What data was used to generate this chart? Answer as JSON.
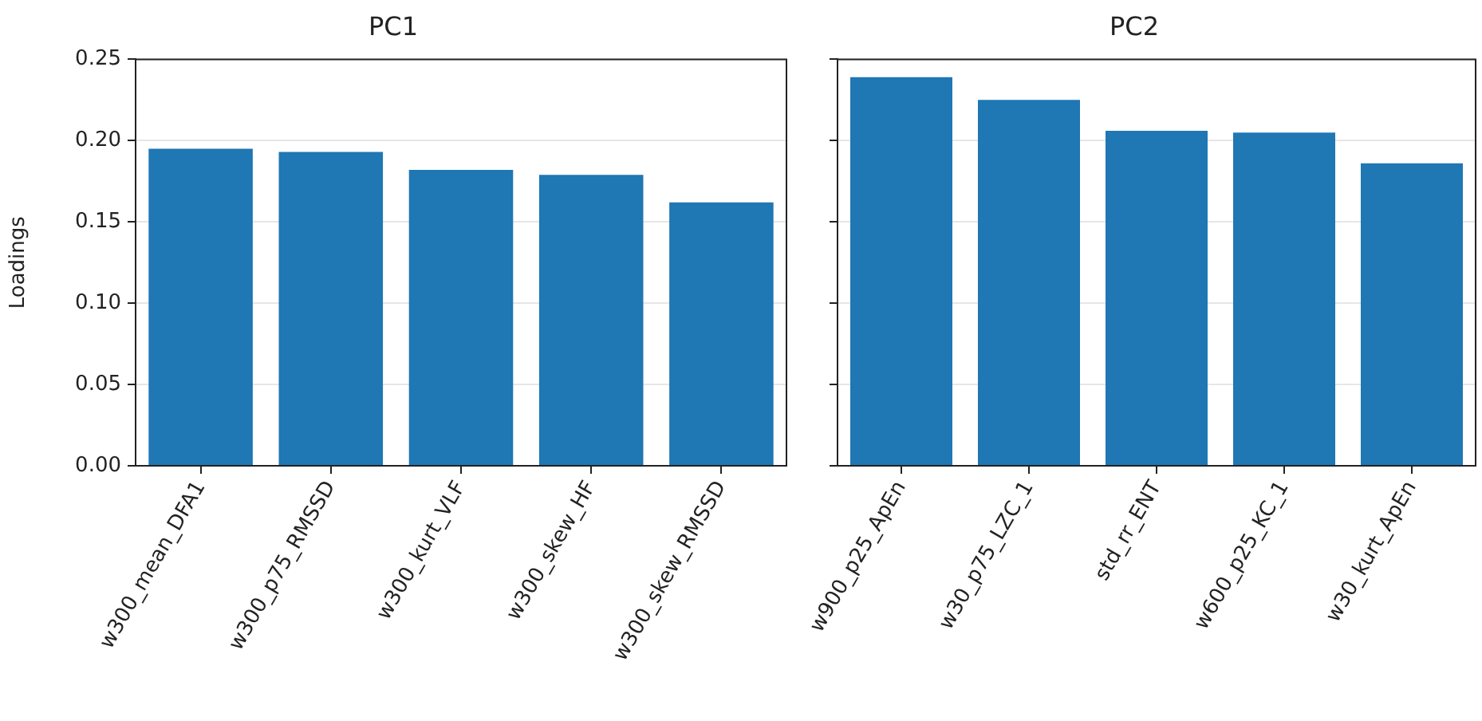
{
  "chart_data": [
    {
      "type": "bar",
      "title": "PC1",
      "ylabel": "Loadings",
      "categories": [
        "w300_mean_DFA1",
        "w300_p75_RMSSD",
        "w300_kurt_VLF",
        "w300_skew_HF",
        "w300_skew_RMSSD"
      ],
      "values": [
        0.195,
        0.193,
        0.182,
        0.179,
        0.162
      ],
      "color": "#1f77b4",
      "ylim": [
        0,
        0.25
      ],
      "yticks": [
        {
          "value": 0,
          "label": "0.00"
        },
        {
          "value": 0.05,
          "label": "0.05"
        },
        {
          "value": 0.1,
          "label": "0.10"
        },
        {
          "value": 0.15,
          "label": "0.15"
        },
        {
          "value": 0.2,
          "label": "0.20"
        },
        {
          "value": 0.25,
          "label": "0.25"
        }
      ],
      "grid": "y"
    },
    {
      "type": "bar",
      "title": "PC2",
      "categories": [
        "w900_p25_ApEn",
        "w30_p75_LZC_1",
        "std_rr_ENT",
        "w600_p25_KC_1",
        "w30_kurt_ApEn"
      ],
      "values": [
        0.239,
        0.225,
        0.206,
        0.205,
        0.186
      ],
      "color": "#1f77b4",
      "ylim": [
        0,
        0.25
      ],
      "yticks": [
        0,
        0.05,
        0.1,
        0.15,
        0.2,
        0.25
      ],
      "grid": "y",
      "tick_labels": "x"
    }
  ]
}
